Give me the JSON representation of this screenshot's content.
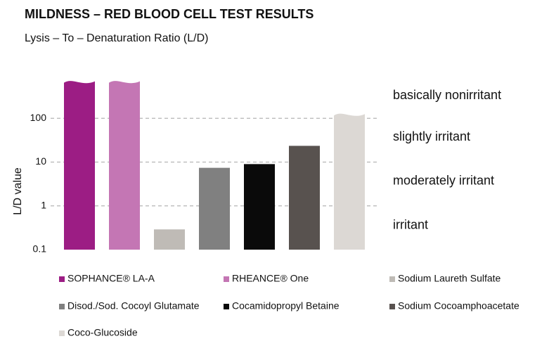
{
  "chart_data": {
    "type": "bar",
    "title": "MILDNESS – RED BLOOD CELL TEST RESULTS",
    "subtitle": "Lysis – To – Denaturation  Ratio (L/D)",
    "y_label": "L/D value",
    "log_scale": true,
    "grid": true,
    "ylim": [
      0.1,
      1000
    ],
    "yticks": [
      0.1,
      1,
      10,
      100
    ],
    "categories": [
      "SOPHANCE® LA-A",
      "RHEANCE® One",
      "Sodium Laureth Sulfate",
      "Disod./Sod. Cocoyl Glutamate",
      "Cocamidopropyl Betaine",
      "Sodium Cocoamphoacetate",
      "Coco-Glucoside"
    ],
    "values": [
      700,
      700,
      0.29,
      7.4,
      9,
      23.5,
      125
    ],
    "colors": [
      "#9c1d84",
      "#c476b4",
      "#bfbbb6",
      "#808080",
      "#0a0a0a",
      "#58524f",
      "#dcd8d4"
    ],
    "annotations": [
      "basically nonirritant",
      "slightly irritant",
      "moderately irritant",
      "irritant"
    ]
  }
}
